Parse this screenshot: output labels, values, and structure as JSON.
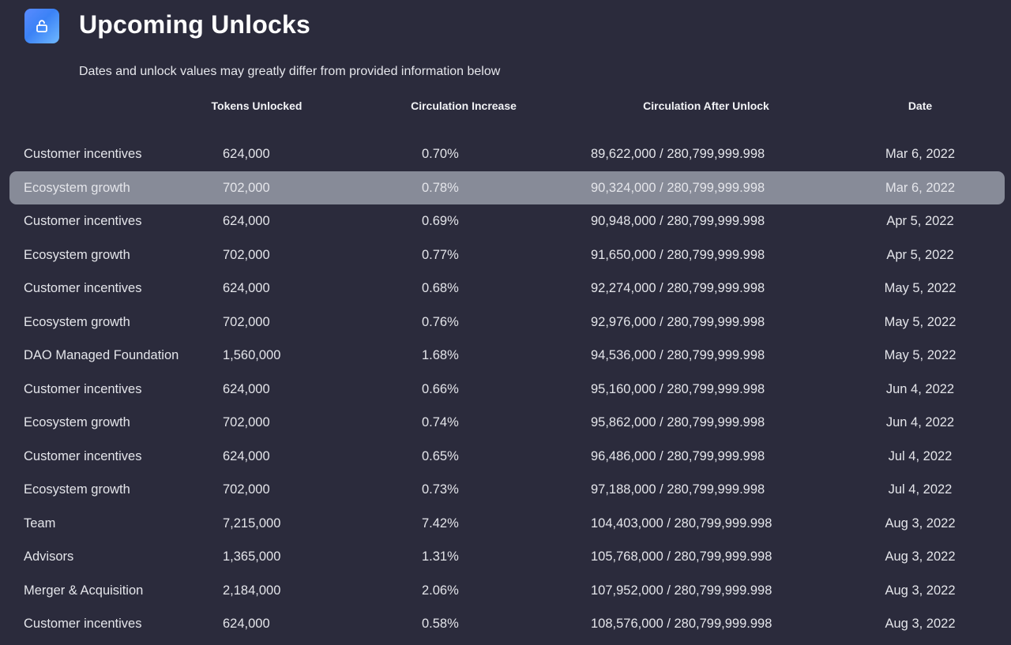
{
  "header": {
    "icon": "unlock-icon",
    "title": "Upcoming Unlocks",
    "subtitle": "Dates and unlock values may greatly differ from provided information below"
  },
  "columns": {
    "tokens": "Tokens Unlocked",
    "increase": "Circulation Increase",
    "after": "Circulation After Unlock",
    "date": "Date"
  },
  "colors": {
    "background": "#2b2b3c",
    "highlight_row": "#878b98",
    "icon_gradient_start": "#5a8bff",
    "icon_gradient_end": "#6fb8ff"
  },
  "highlighted_row_index": 1,
  "rows": [
    {
      "name": "Customer incentives",
      "tokens": "624,000",
      "increase": "0.70%",
      "after": "89,622,000 / 280,799,999.998",
      "date": "Mar 6, 2022"
    },
    {
      "name": "Ecosystem growth",
      "tokens": "702,000",
      "increase": "0.78%",
      "after": "90,324,000 / 280,799,999.998",
      "date": "Mar 6, 2022"
    },
    {
      "name": "Customer incentives",
      "tokens": "624,000",
      "increase": "0.69%",
      "after": "90,948,000 / 280,799,999.998",
      "date": "Apr 5, 2022"
    },
    {
      "name": "Ecosystem growth",
      "tokens": "702,000",
      "increase": "0.77%",
      "after": "91,650,000 / 280,799,999.998",
      "date": "Apr 5, 2022"
    },
    {
      "name": "Customer incentives",
      "tokens": "624,000",
      "increase": "0.68%",
      "after": "92,274,000 / 280,799,999.998",
      "date": "May 5, 2022"
    },
    {
      "name": "Ecosystem growth",
      "tokens": "702,000",
      "increase": "0.76%",
      "after": "92,976,000 / 280,799,999.998",
      "date": "May 5, 2022"
    },
    {
      "name": "DAO Managed Foundation",
      "tokens": "1,560,000",
      "increase": "1.68%",
      "after": "94,536,000 / 280,799,999.998",
      "date": "May 5, 2022"
    },
    {
      "name": "Customer incentives",
      "tokens": "624,000",
      "increase": "0.66%",
      "after": "95,160,000 / 280,799,999.998",
      "date": "Jun 4, 2022"
    },
    {
      "name": "Ecosystem growth",
      "tokens": "702,000",
      "increase": "0.74%",
      "after": "95,862,000 / 280,799,999.998",
      "date": "Jun 4, 2022"
    },
    {
      "name": "Customer incentives",
      "tokens": "624,000",
      "increase": "0.65%",
      "after": "96,486,000 / 280,799,999.998",
      "date": "Jul 4, 2022"
    },
    {
      "name": "Ecosystem growth",
      "tokens": "702,000",
      "increase": "0.73%",
      "after": "97,188,000 / 280,799,999.998",
      "date": "Jul 4, 2022"
    },
    {
      "name": "Team",
      "tokens": "7,215,000",
      "increase": "7.42%",
      "after": "104,403,000 / 280,799,999.998",
      "date": "Aug 3, 2022"
    },
    {
      "name": "Advisors",
      "tokens": "1,365,000",
      "increase": "1.31%",
      "after": "105,768,000 / 280,799,999.998",
      "date": "Aug 3, 2022"
    },
    {
      "name": "Merger & Acquisition",
      "tokens": "2,184,000",
      "increase": "2.06%",
      "after": "107,952,000 / 280,799,999.998",
      "date": "Aug 3, 2022"
    },
    {
      "name": "Customer incentives",
      "tokens": "624,000",
      "increase": "0.58%",
      "after": "108,576,000 / 280,799,999.998",
      "date": "Aug 3, 2022"
    }
  ]
}
